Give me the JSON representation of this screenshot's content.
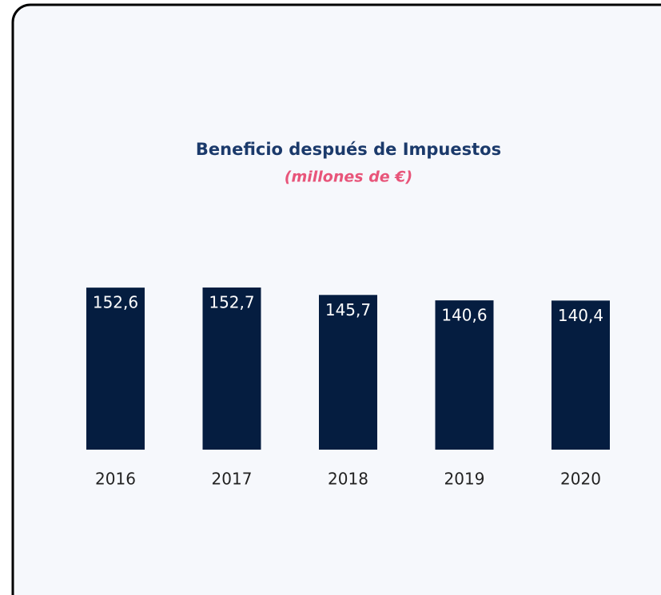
{
  "chart_data": {
    "type": "bar",
    "title": "Beneficio después de Impuestos",
    "subtitle": "(millones de €)",
    "categories": [
      "2016",
      "2017",
      "2018",
      "2019",
      "2020"
    ],
    "values": [
      152.6,
      152.7,
      145.7,
      140.6,
      140.4
    ],
    "value_labels": [
      "152,6",
      "152,7",
      "145,7",
      "140,6",
      "140,4"
    ],
    "color": "#051d40"
  }
}
